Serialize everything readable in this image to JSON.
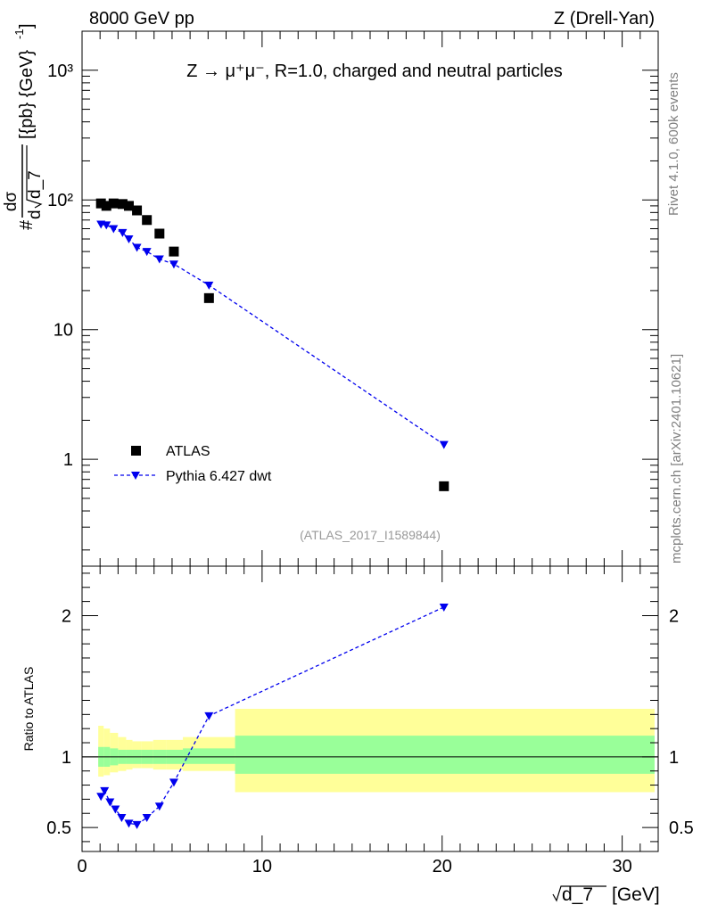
{
  "header": {
    "left": "8000 GeV pp",
    "right": "Z (Drell-Yan)"
  },
  "side_text": {
    "rivet": "Rivet 4.1.0,  600k events",
    "mcplots": "mcplots.cern.ch [arXiv:2401.10621]"
  },
  "chart_data": [
    {
      "type": "scatter",
      "title": "Z → μ⁺μ⁻, R=1.0, charged and neutral particles",
      "analysis_label": "(ATLAS_2017_I1589844)",
      "ylabel": "# dσ/d√d_7 [{pb} {GeV}⁻¹]",
      "ylabel_parts": {
        "hash": "#",
        "num": "dσ",
        "den_d": "d",
        "den_rest": "d_7",
        "units": "[{pb} {GeV}",
        "exp": "-1",
        "close": "]"
      },
      "yscale": "log",
      "ylim": [
        0.15,
        2000
      ],
      "xlim": [
        0,
        32
      ],
      "yticks": [
        {
          "value": 1,
          "label": "1"
        },
        {
          "value": 10,
          "label": "10"
        },
        {
          "value": 100,
          "label": "10²"
        },
        {
          "value": 1000,
          "label": "10³"
        }
      ],
      "legend_position": "bottom-left",
      "legend": {
        "data": "ATLAS",
        "mc": "Pythia 6.427 dwt"
      },
      "series": [
        {
          "name": "ATLAS",
          "style": "square",
          "color": "#000000",
          "x": [
            1.05,
            1.35,
            1.75,
            2.25,
            2.6,
            3.05,
            3.6,
            4.3,
            5.1,
            7.05,
            20.1
          ],
          "y": [
            94,
            90,
            94,
            93,
            90,
            83,
            70,
            55,
            40,
            17.5,
            0.62
          ]
        },
        {
          "name": "Pythia 6.427 dwt",
          "style": "triangle-down-dashed",
          "color": "#0000ee",
          "x": [
            1.05,
            1.35,
            1.75,
            2.25,
            2.6,
            3.05,
            3.6,
            4.3,
            5.1,
            7.05,
            20.1
          ],
          "y": [
            65,
            64,
            60,
            56,
            50,
            43,
            40,
            35,
            32,
            22,
            1.3
          ]
        }
      ]
    },
    {
      "type": "line",
      "title": "",
      "ylabel": "Ratio to ATLAS",
      "xlabel": "√d_7 [GeV]",
      "xlabel_parts": {
        "root": "d_7",
        "units": "[GeV]"
      },
      "xlim": [
        0,
        32
      ],
      "ylim": [
        0.33,
        2.35
      ],
      "xticks": [
        0,
        10,
        20,
        30
      ],
      "yticks": [
        0.5,
        1,
        2
      ],
      "reference_line": 1,
      "bands": [
        {
          "x_low": 0.9,
          "x_high": 1.2,
          "inner_low": 0.93,
          "inner_high": 1.07,
          "outer_low": 0.86,
          "outer_high": 1.22
        },
        {
          "x_low": 1.2,
          "x_high": 1.55,
          "inner_low": 0.93,
          "inner_high": 1.07,
          "outer_low": 0.87,
          "outer_high": 1.2
        },
        {
          "x_low": 1.55,
          "x_high": 2.0,
          "inner_low": 0.94,
          "inner_high": 1.06,
          "outer_low": 0.89,
          "outer_high": 1.17
        },
        {
          "x_low": 2.0,
          "x_high": 2.45,
          "inner_low": 0.95,
          "inner_high": 1.05,
          "outer_low": 0.9,
          "outer_high": 1.14
        },
        {
          "x_low": 2.45,
          "x_high": 2.8,
          "inner_low": 0.95,
          "inner_high": 1.05,
          "outer_low": 0.91,
          "outer_high": 1.12
        },
        {
          "x_low": 2.8,
          "x_high": 3.3,
          "inner_low": 0.95,
          "inner_high": 1.05,
          "outer_low": 0.92,
          "outer_high": 1.11
        },
        {
          "x_low": 3.3,
          "x_high": 3.95,
          "inner_low": 0.95,
          "inner_high": 1.05,
          "outer_low": 0.92,
          "outer_high": 1.11
        },
        {
          "x_low": 3.95,
          "x_high": 4.7,
          "inner_low": 0.95,
          "inner_high": 1.05,
          "outer_low": 0.91,
          "outer_high": 1.12
        },
        {
          "x_low": 4.7,
          "x_high": 5.6,
          "inner_low": 0.95,
          "inner_high": 1.05,
          "outer_low": 0.91,
          "outer_high": 1.12
        },
        {
          "x_low": 5.6,
          "x_high": 8.5,
          "inner_low": 0.95,
          "inner_high": 1.06,
          "outer_low": 0.9,
          "outer_high": 1.14
        },
        {
          "x_low": 8.5,
          "x_high": 31.8,
          "inner_low": 0.88,
          "inner_high": 1.15,
          "outer_low": 0.75,
          "outer_high": 1.34
        }
      ],
      "band_colors": {
        "inner": "#99ff99",
        "outer": "#ffff99"
      },
      "series": [
        {
          "name": "Pythia 6.427 dwt",
          "style": "triangle-down-dashed",
          "color": "#0000ee",
          "x": [
            1.05,
            1.25,
            1.55,
            1.85,
            2.2,
            2.6,
            3.05,
            3.6,
            4.3,
            5.1,
            7.05,
            20.1
          ],
          "y": [
            0.72,
            0.76,
            0.68,
            0.63,
            0.57,
            0.53,
            0.52,
            0.57,
            0.65,
            0.82,
            1.29,
            2.06
          ]
        }
      ]
    }
  ]
}
